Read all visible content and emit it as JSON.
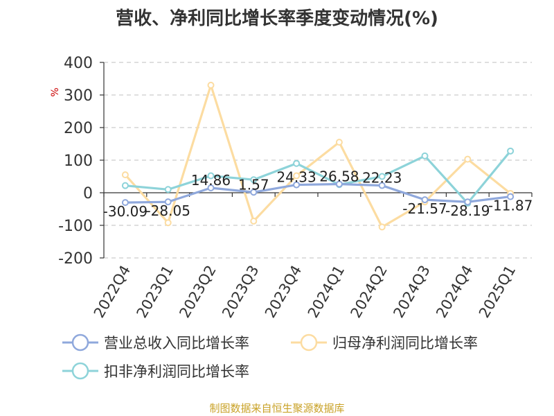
{
  "chart_data": {
    "type": "line",
    "title": "营收、净利同比增长率季度变动情况(%)",
    "ylabel": "%",
    "categories": [
      "2022Q4",
      "2023Q1",
      "2023Q2",
      "2023Q3",
      "2023Q4",
      "2024Q1",
      "2024Q2",
      "2024Q3",
      "2024Q4",
      "2025Q1"
    ],
    "ylim": [
      -200,
      400
    ],
    "yticks": [
      400,
      300,
      200,
      100,
      0,
      -100,
      -200
    ],
    "grid": true,
    "legend_position": "bottom",
    "series": [
      {
        "name": "营业总收入同比增长率",
        "color": "#8fa8dc",
        "values": [
          -30.09,
          -28.05,
          14.86,
          1.57,
          24.33,
          26.58,
          22.23,
          -21.57,
          -28.19,
          -11.87
        ],
        "labels": [
          "-30.09",
          "-28.05",
          "14.86",
          "1.57",
          "24.33",
          "26.58",
          "22.23",
          "-21.57",
          "-28.19",
          "-11.87"
        ]
      },
      {
        "name": "归母净利润同比增长率",
        "color": "#fcdca1",
        "values": [
          55,
          -92,
          330,
          -87,
          52,
          155,
          -105,
          -28,
          103,
          -2
        ],
        "labels": []
      },
      {
        "name": "扣非净利润同比增长率",
        "color": "#8dd3d9",
        "values": [
          22,
          10,
          52,
          40,
          90,
          25,
          50,
          113,
          -32,
          128
        ],
        "labels": []
      }
    ]
  },
  "source": "制图数据来自恒生聚源数据库"
}
